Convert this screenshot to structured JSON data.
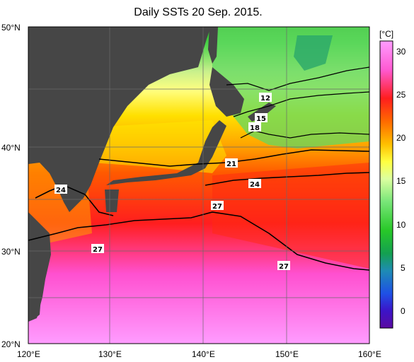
{
  "title": "Daily SSTs 20 Sep. 2015.",
  "lat_labels": [
    "50°N",
    "40°N",
    "30°N",
    "20°N"
  ],
  "lon_labels": [
    "120°E",
    "130°E",
    "140°E",
    "150°E",
    "160°E"
  ],
  "colorbar": {
    "unit": "[°C]",
    "ticks": [
      "30",
      "25",
      "20",
      "15",
      "10",
      "5",
      "0"
    ],
    "colors": [
      "#ff9cff",
      "#ff5ad2",
      "#ff1e1e",
      "#ff6a00",
      "#ffc000",
      "#ffff40",
      "#dcffa0",
      "#78e678",
      "#28c828",
      "#14a050",
      "#1e8cb4",
      "#1e50e6",
      "#3c14c8",
      "#5a0aa0"
    ]
  },
  "contour_labels": [
    "12",
    "15",
    "18",
    "21",
    "24",
    "24",
    "27",
    "27",
    "27"
  ],
  "colors": {
    "land": "#464646",
    "frame": "#000000"
  }
}
